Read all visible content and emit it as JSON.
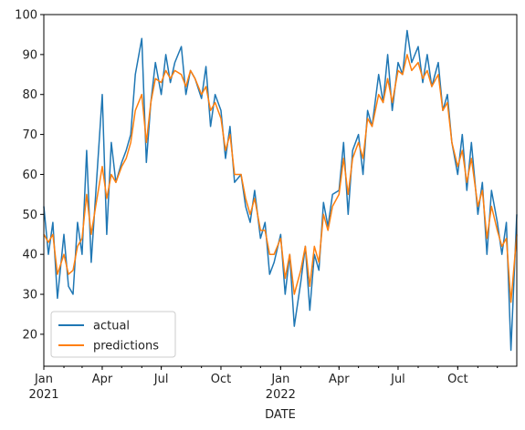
{
  "chart_data": {
    "type": "line",
    "xlabel": "DATE",
    "ylabel": "",
    "ylim": [
      12,
      100
    ],
    "xlim": [
      "2021-01-01",
      "2022-12-31"
    ],
    "y_ticks": [
      20,
      30,
      40,
      50,
      60,
      70,
      80,
      90,
      100
    ],
    "x_ticks": [
      {
        "date": "2021-01-01",
        "label": "Jan",
        "sublabel": "2021"
      },
      {
        "date": "2021-04-01",
        "label": "Apr",
        "sublabel": ""
      },
      {
        "date": "2021-07-01",
        "label": "Jul",
        "sublabel": ""
      },
      {
        "date": "2021-10-01",
        "label": "Oct",
        "sublabel": ""
      },
      {
        "date": "2022-01-01",
        "label": "Jan",
        "sublabel": "2022"
      },
      {
        "date": "2022-04-01",
        "label": "Apr",
        "sublabel": ""
      },
      {
        "date": "2022-07-01",
        "label": "Jul",
        "sublabel": ""
      },
      {
        "date": "2022-10-01",
        "label": "Oct",
        "sublabel": ""
      }
    ],
    "grid": false,
    "legend_position": "lower-left",
    "series": [
      {
        "name": "actual",
        "color": "#1f77b4",
        "x": [
          "2021-01-01",
          "2021-01-08",
          "2021-01-15",
          "2021-01-22",
          "2021-02-01",
          "2021-02-08",
          "2021-02-15",
          "2021-02-22",
          "2021-03-01",
          "2021-03-08",
          "2021-03-15",
          "2021-03-22",
          "2021-04-01",
          "2021-04-08",
          "2021-04-15",
          "2021-04-22",
          "2021-05-01",
          "2021-05-08",
          "2021-05-15",
          "2021-05-22",
          "2021-06-01",
          "2021-06-08",
          "2021-06-15",
          "2021-06-22",
          "2021-07-01",
          "2021-07-08",
          "2021-07-15",
          "2021-07-22",
          "2021-08-01",
          "2021-08-08",
          "2021-08-15",
          "2021-08-22",
          "2021-09-01",
          "2021-09-08",
          "2021-09-15",
          "2021-09-22",
          "2021-10-01",
          "2021-10-08",
          "2021-10-15",
          "2021-10-22",
          "2021-11-01",
          "2021-11-08",
          "2021-11-15",
          "2021-11-22",
          "2021-12-01",
          "2021-12-08",
          "2021-12-15",
          "2021-12-22",
          "2022-01-01",
          "2022-01-08",
          "2022-01-15",
          "2022-01-22",
          "2022-02-01",
          "2022-02-08",
          "2022-02-15",
          "2022-02-22",
          "2022-03-01",
          "2022-03-08",
          "2022-03-15",
          "2022-03-22",
          "2022-04-01",
          "2022-04-08",
          "2022-04-15",
          "2022-04-22",
          "2022-05-01",
          "2022-05-08",
          "2022-05-15",
          "2022-05-22",
          "2022-06-01",
          "2022-06-08",
          "2022-06-15",
          "2022-06-22",
          "2022-07-01",
          "2022-07-08",
          "2022-07-15",
          "2022-07-22",
          "2022-08-01",
          "2022-08-08",
          "2022-08-15",
          "2022-08-22",
          "2022-09-01",
          "2022-09-08",
          "2022-09-15",
          "2022-09-22",
          "2022-10-01",
          "2022-10-08",
          "2022-10-15",
          "2022-10-22",
          "2022-11-01",
          "2022-11-08",
          "2022-11-15",
          "2022-11-22",
          "2022-12-01",
          "2022-12-08",
          "2022-12-15",
          "2022-12-22",
          "2022-12-31"
        ],
        "values": [
          52,
          40,
          48,
          29,
          45,
          32,
          30,
          48,
          40,
          66,
          38,
          55,
          80,
          45,
          68,
          58,
          63,
          66,
          70,
          85,
          94,
          63,
          78,
          88,
          80,
          90,
          83,
          88,
          92,
          80,
          86,
          84,
          79,
          87,
          72,
          80,
          76,
          64,
          72,
          58,
          60,
          52,
          48,
          56,
          44,
          48,
          35,
          38,
          45,
          30,
          40,
          22,
          33,
          42,
          26,
          40,
          36,
          53,
          47,
          55,
          56,
          68,
          50,
          66,
          70,
          60,
          76,
          72,
          85,
          78,
          90,
          76,
          88,
          85,
          96,
          88,
          92,
          83,
          90,
          82,
          88,
          76,
          80,
          68,
          60,
          70,
          56,
          68,
          50,
          58,
          40,
          56,
          48,
          40,
          48,
          16,
          50
        ]
      },
      {
        "name": "predictions",
        "color": "#ff7f0e",
        "x": [
          "2021-01-01",
          "2021-01-08",
          "2021-01-15",
          "2021-01-22",
          "2021-02-01",
          "2021-02-08",
          "2021-02-15",
          "2021-02-22",
          "2021-03-01",
          "2021-03-08",
          "2021-03-15",
          "2021-03-22",
          "2021-04-01",
          "2021-04-08",
          "2021-04-15",
          "2021-04-22",
          "2021-05-01",
          "2021-05-08",
          "2021-05-15",
          "2021-05-22",
          "2021-06-01",
          "2021-06-08",
          "2021-06-15",
          "2021-06-22",
          "2021-07-01",
          "2021-07-08",
          "2021-07-15",
          "2021-07-22",
          "2021-08-01",
          "2021-08-08",
          "2021-08-15",
          "2021-08-22",
          "2021-09-01",
          "2021-09-08",
          "2021-09-15",
          "2021-09-22",
          "2021-10-01",
          "2021-10-08",
          "2021-10-15",
          "2021-10-22",
          "2021-11-01",
          "2021-11-08",
          "2021-11-15",
          "2021-11-22",
          "2021-12-01",
          "2021-12-08",
          "2021-12-15",
          "2021-12-22",
          "2022-01-01",
          "2022-01-08",
          "2022-01-15",
          "2022-01-22",
          "2022-02-01",
          "2022-02-08",
          "2022-02-15",
          "2022-02-22",
          "2022-03-01",
          "2022-03-08",
          "2022-03-15",
          "2022-03-22",
          "2022-04-01",
          "2022-04-08",
          "2022-04-15",
          "2022-04-22",
          "2022-05-01",
          "2022-05-08",
          "2022-05-15",
          "2022-05-22",
          "2022-06-01",
          "2022-06-08",
          "2022-06-15",
          "2022-06-22",
          "2022-07-01",
          "2022-07-08",
          "2022-07-15",
          "2022-07-22",
          "2022-08-01",
          "2022-08-08",
          "2022-08-15",
          "2022-08-22",
          "2022-09-01",
          "2022-09-08",
          "2022-09-15",
          "2022-09-22",
          "2022-10-01",
          "2022-10-08",
          "2022-10-15",
          "2022-10-22",
          "2022-11-01",
          "2022-11-08",
          "2022-11-15",
          "2022-11-22",
          "2022-12-01",
          "2022-12-08",
          "2022-12-15",
          "2022-12-22",
          "2022-12-31"
        ],
        "values": [
          45,
          43,
          45,
          35,
          40,
          35,
          36,
          42,
          44,
          55,
          45,
          52,
          62,
          54,
          60,
          58,
          62,
          64,
          68,
          76,
          80,
          68,
          78,
          84,
          83,
          86,
          84,
          86,
          85,
          82,
          86,
          84,
          80,
          82,
          76,
          78,
          74,
          66,
          70,
          60,
          60,
          54,
          50,
          54,
          46,
          46,
          40,
          40,
          44,
          34,
          40,
          30,
          36,
          42,
          32,
          42,
          38,
          50,
          46,
          52,
          55,
          64,
          55,
          64,
          68,
          64,
          74,
          72,
          80,
          78,
          84,
          78,
          86,
          85,
          90,
          86,
          88,
          84,
          86,
          82,
          85,
          76,
          78,
          68,
          62,
          66,
          58,
          64,
          52,
          56,
          44,
          52,
          46,
          42,
          44,
          28,
          45
        ]
      }
    ]
  }
}
